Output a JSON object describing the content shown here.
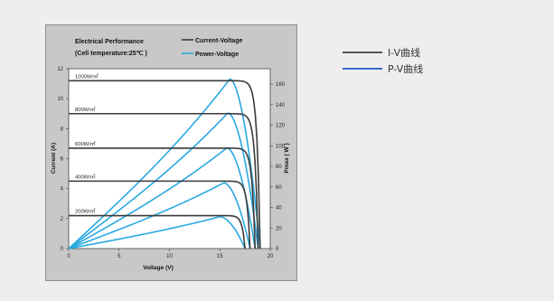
{
  "chart_data": {
    "type": "line",
    "title_line1": "Electrical Performance",
    "title_line2": "(Cell temperature:25℃ )",
    "inner_legend": [
      {
        "label": "Current-Voltage",
        "color": "#3a3a3a"
      },
      {
        "label": "Power-Voltage",
        "color": "#29a9e1"
      }
    ],
    "xlabel": "Voltage (V)",
    "ylabel_left": "Current (A)",
    "ylabel_right": "Pmax ( W )",
    "xlim": [
      0,
      20
    ],
    "ylim_left": [
      0,
      12
    ],
    "ylim_right": [
      0,
      175
    ],
    "x_ticks": [
      "0",
      "5",
      "10",
      "15",
      "20"
    ],
    "y_left_ticks": [
      "0",
      "2",
      "4",
      "6",
      "8",
      "10",
      "12"
    ],
    "y_right_ticks": [
      "0",
      "20",
      "40",
      "60",
      "80",
      "100",
      "120",
      "140",
      "160"
    ],
    "grid": false,
    "series": [
      {
        "irradiance": "1000W/㎡",
        "isc": 11.2,
        "voc": 19.0,
        "pmax": 165,
        "vmp": 16.0
      },
      {
        "irradiance": "800W/㎡",
        "isc": 9.0,
        "voc": 18.8,
        "pmax": 132,
        "vmp": 15.8
      },
      {
        "irradiance": "600W/㎡",
        "isc": 6.7,
        "voc": 18.5,
        "pmax": 98,
        "vmp": 15.7
      },
      {
        "irradiance": "400W/㎡",
        "isc": 4.5,
        "voc": 18.0,
        "pmax": 64,
        "vmp": 15.4
      },
      {
        "irradiance": "200W/㎡",
        "isc": 2.2,
        "voc": 17.5,
        "pmax": 31,
        "vmp": 15.0
      }
    ]
  },
  "legend": {
    "iv_label": "I-V曲线",
    "iv_color": "#555555",
    "pv_label": "P-V曲线",
    "pv_color": "#3c6ac8"
  }
}
